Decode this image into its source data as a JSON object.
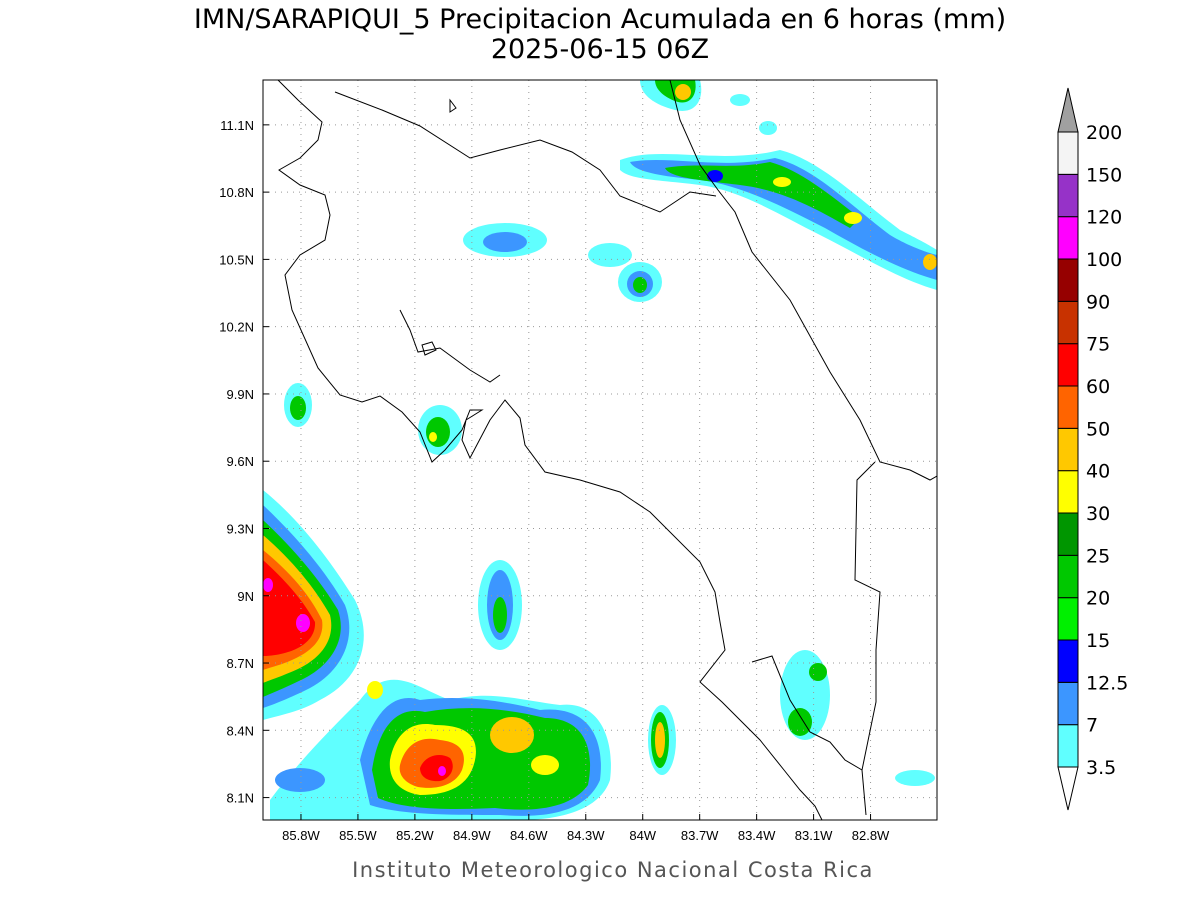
{
  "title": "IMN/SARAPIQUI_5 Precipitacion Acumulada en 6 horas (mm)",
  "subtitle": "2025-06-15 06Z",
  "footer": "Instituto Meteorologico Nacional Costa Rica",
  "map": {
    "lonlim": [
      -86.0,
      -82.45
    ],
    "latlim": [
      8.0,
      11.3
    ],
    "grid": true,
    "lon_ticks": [
      {
        "value": -85.8,
        "label": "85.8W"
      },
      {
        "value": -85.5,
        "label": "85.5W"
      },
      {
        "value": -85.2,
        "label": "85.2W"
      },
      {
        "value": -84.9,
        "label": "84.9W"
      },
      {
        "value": -84.6,
        "label": "84.6W"
      },
      {
        "value": -84.3,
        "label": "84.3W"
      },
      {
        "value": -84.0,
        "label": "84W"
      },
      {
        "value": -83.7,
        "label": "83.7W"
      },
      {
        "value": -83.4,
        "label": "83.4W"
      },
      {
        "value": -83.1,
        "label": "83.1W"
      },
      {
        "value": -82.8,
        "label": "82.8W"
      }
    ],
    "lat_ticks": [
      {
        "value": 11.1,
        "label": "11.1N"
      },
      {
        "value": 10.8,
        "label": "10.8N"
      },
      {
        "value": 10.5,
        "label": "10.5N"
      },
      {
        "value": 10.2,
        "label": "10.2N"
      },
      {
        "value": 9.9,
        "label": "9.9N"
      },
      {
        "value": 9.6,
        "label": "9.6N"
      },
      {
        "value": 9.3,
        "label": "9.3N"
      },
      {
        "value": 9.0,
        "label": "9N"
      },
      {
        "value": 8.7,
        "label": "8.7N"
      },
      {
        "value": 8.4,
        "label": "8.4N"
      },
      {
        "value": 8.1,
        "label": "8.1N"
      }
    ]
  },
  "colorbar": {
    "levels": [
      3.5,
      7,
      12.5,
      15,
      20,
      25,
      30,
      40,
      50,
      60,
      75,
      90,
      100,
      120,
      150,
      200
    ],
    "colors": [
      "#60ffff",
      "#3c96ff",
      "#0000ff",
      "#00f000",
      "#00c800",
      "#009600",
      "#ffff00",
      "#ffc800",
      "#ff6400",
      "#ff0000",
      "#c83200",
      "#960000",
      "#ff00ff",
      "#9632c8",
      "#f4f4f4"
    ],
    "under_color": "#ffffff",
    "over_color": "#a0a0a0"
  }
}
